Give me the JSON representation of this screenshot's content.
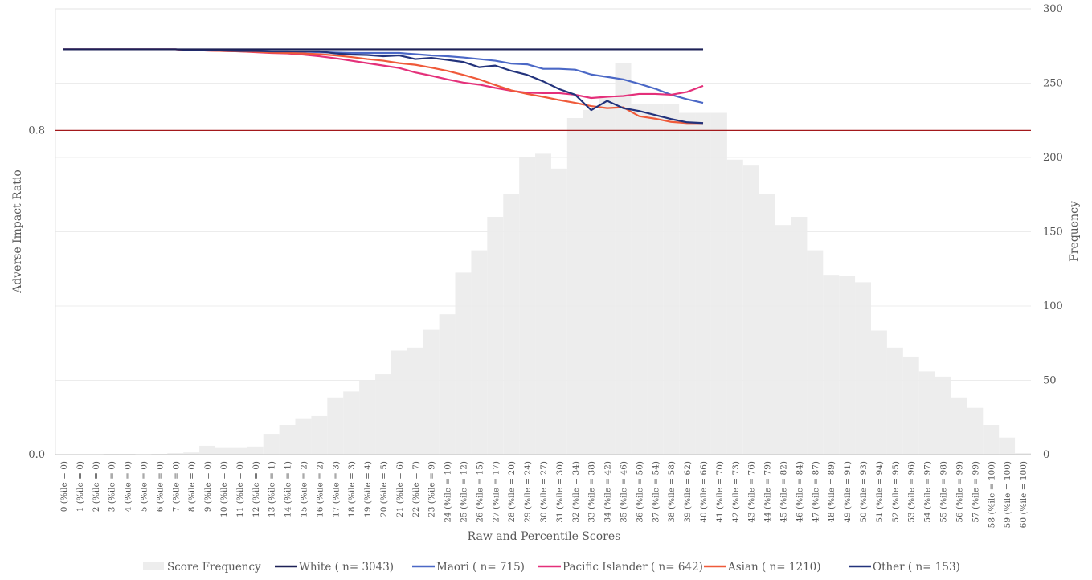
{
  "chart_data": {
    "type": "bar+line",
    "title": "",
    "xlabel": "Raw and Percentile Scores",
    "ylabel_left": "Adverse Impact Ratio",
    "ylabel_right": "Frequency",
    "left_axis": {
      "ylim": [
        0,
        1.1
      ],
      "tick_labels": [
        "0.0",
        "0.8"
      ],
      "tick_values": [
        0,
        0.8
      ]
    },
    "right_axis": {
      "ylim": [
        0,
        300
      ],
      "tick_values": [
        0,
        50,
        100,
        150,
        200,
        250,
        300
      ]
    },
    "threshold_line": {
      "value": 0.8,
      "color": "#a3191c"
    },
    "categories": [
      "0 (%ile = 0)",
      "1 (%ile = 0)",
      "2 (%ile = 0)",
      "3 (%ile = 0)",
      "4 (%ile = 0)",
      "5 (%ile = 0)",
      "6 (%ile = 0)",
      "7 (%ile = 0)",
      "8 (%ile = 0)",
      "9 (%ile = 0)",
      "10 (%ile = 0)",
      "11 (%ile = 0)",
      "12 (%ile = 0)",
      "13 (%ile = 1)",
      "14 (%ile = 1)",
      "15 (%ile = 2)",
      "16 (%ile = 2)",
      "17 (%ile = 3)",
      "18 (%ile = 3)",
      "19 (%ile = 4)",
      "20 (%ile = 5)",
      "21 (%ile = 6)",
      "22 (%ile = 7)",
      "23 (%ile = 9)",
      "24 (%ile = 10)",
      "25 (%ile = 12)",
      "26 (%ile = 15)",
      "27 (%ile = 17)",
      "28 (%ile = 20)",
      "29 (%ile = 24)",
      "30 (%ile = 27)",
      "31 (%ile = 30)",
      "32 (%ile = 34)",
      "33 (%ile = 38)",
      "34 (%ile = 42)",
      "35 (%ile = 46)",
      "36 (%ile = 50)",
      "37 (%ile = 54)",
      "38 (%ile = 58)",
      "39 (%ile = 62)",
      "40 (%ile = 66)",
      "41 (%ile = 70)",
      "42 (%ile = 73)",
      "43 (%ile = 76)",
      "44 (%ile = 79)",
      "45 (%ile = 82)",
      "46 (%ile = 84)",
      "47 (%ile = 87)",
      "48 (%ile = 89)",
      "49 (%ile = 91)",
      "50 (%ile = 93)",
      "51 (%ile = 94)",
      "52 (%ile = 95)",
      "53 (%ile = 96)",
      "54 (%ile = 97)",
      "55 (%ile = 98)",
      "56 (%ile = 99)",
      "57 (%ile = 99)",
      "58 (%ile = 100)",
      "59 (%ile = 100)",
      "60 (%ile = 100)"
    ],
    "bar_series": {
      "name": "Score Frequency",
      "color": "#ededed",
      "axis": "right",
      "values": [
        0,
        0,
        0,
        0.5,
        0.5,
        0,
        0.5,
        1,
        1.5,
        6,
        4.5,
        4.5,
        5.5,
        14,
        20,
        24.5,
        26,
        38.5,
        42.5,
        50,
        54,
        70,
        72,
        84,
        94.5,
        122.5,
        137.5,
        160,
        175.5,
        200,
        202.5,
        192.5,
        226.5,
        232,
        240,
        263.5,
        236,
        236,
        236,
        230,
        230,
        230,
        198.5,
        194.5,
        175.5,
        154.5,
        160,
        137.5,
        121,
        120,
        116,
        83.5,
        72,
        66,
        56,
        52.5,
        38.5,
        31.5,
        20,
        11.5,
        1
      ]
    },
    "line_series": [
      {
        "name": "White ( n= 3043)",
        "color": "#1d2157",
        "axis": "left",
        "values": [
          1,
          1,
          1,
          1,
          1,
          1,
          1,
          1,
          1,
          1,
          1,
          1,
          1,
          1,
          1,
          1,
          1,
          1,
          1,
          1,
          1,
          1,
          1,
          1,
          1,
          1,
          1,
          1,
          1,
          1,
          1,
          1,
          1,
          1,
          1,
          1,
          1,
          1,
          1,
          1,
          1
        ]
      },
      {
        "name": "Maori ( n= 715)",
        "color": "#4b68c6",
        "axis": "left",
        "values": [
          1,
          1,
          1,
          1,
          1,
          1,
          1,
          1,
          0.998,
          0.998,
          0.997,
          0.996,
          0.996,
          0.995,
          0.995,
          0.994,
          0.993,
          0.992,
          0.991,
          0.991,
          0.991,
          0.991,
          0.988,
          0.985,
          0.983,
          0.98,
          0.976,
          0.972,
          0.965,
          0.963,
          0.952,
          0.952,
          0.95,
          0.938,
          0.932,
          0.926,
          0.915,
          0.903,
          0.888,
          0.877,
          0.868
        ]
      },
      {
        "name": "Pacific Islander ( n= 642)",
        "color": "#e4307a",
        "axis": "left",
        "values": [
          1,
          1,
          1,
          1,
          1,
          1,
          1,
          1,
          0.998,
          0.997,
          0.996,
          0.995,
          0.993,
          0.991,
          0.99,
          0.987,
          0.983,
          0.978,
          0.972,
          0.966,
          0.96,
          0.954,
          0.943,
          0.935,
          0.926,
          0.918,
          0.913,
          0.905,
          0.898,
          0.893,
          0.892,
          0.892,
          0.888,
          0.88,
          0.883,
          0.885,
          0.89,
          0.89,
          0.888,
          0.895,
          0.91
        ]
      },
      {
        "name": "Asian ( n= 1210)",
        "color": "#ef5a3a",
        "axis": "left",
        "values": [
          1,
          1,
          1,
          1,
          1,
          1,
          1,
          1,
          0.998,
          0.997,
          0.996,
          0.995,
          0.994,
          0.992,
          0.991,
          0.99,
          0.988,
          0.985,
          0.981,
          0.976,
          0.972,
          0.966,
          0.962,
          0.955,
          0.947,
          0.937,
          0.926,
          0.912,
          0.899,
          0.89,
          0.883,
          0.875,
          0.868,
          0.86,
          0.855,
          0.857,
          0.835,
          0.829,
          0.821,
          0.818,
          0.818
        ]
      },
      {
        "name": "Other ( n= 153)",
        "color": "#23337c",
        "axis": "left",
        "values": [
          1,
          1,
          1,
          1,
          1,
          1,
          1,
          1,
          0.998,
          0.998,
          0.997,
          0.996,
          0.996,
          0.995,
          0.995,
          0.995,
          0.995,
          0.99,
          0.987,
          0.986,
          0.983,
          0.985,
          0.976,
          0.979,
          0.974,
          0.969,
          0.956,
          0.96,
          0.947,
          0.937,
          0.921,
          0.902,
          0.888,
          0.85,
          0.873,
          0.855,
          0.848,
          0.838,
          0.828,
          0.82,
          0.818
        ]
      }
    ]
  }
}
